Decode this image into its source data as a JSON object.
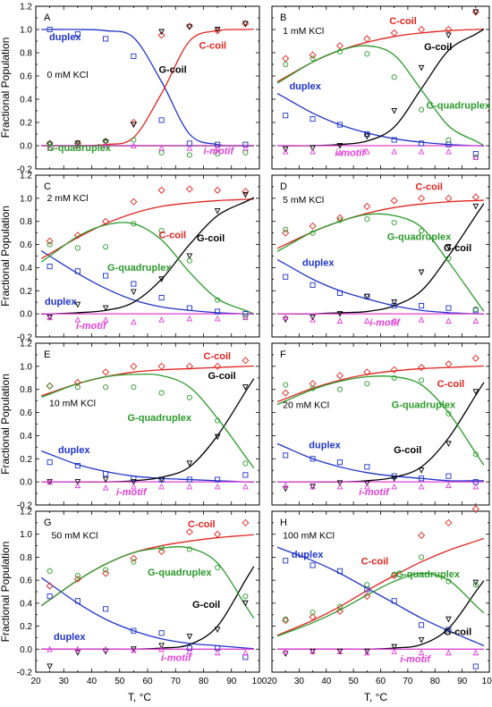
{
  "chart_data": {
    "type": "scatter",
    "ylabel": "Fractional Population",
    "xlabel": "T, °C",
    "xlim": [
      20,
      100
    ],
    "ylim": [
      -0.2,
      1.2
    ],
    "x_ticks": [
      "20",
      "30",
      "40",
      "50",
      "60",
      "70",
      "80",
      "90",
      "100"
    ],
    "y_ticks": [
      "-0.2",
      "0.0",
      "0.2",
      "0.4",
      "0.6",
      "0.8",
      "1.0",
      "1.2"
    ],
    "colors": {
      "duplex": "#1f35c8",
      "c_coil": "#e0241e",
      "g_coil": "#000000",
      "g_quadruplex": "#2a9a2a",
      "i_motif": "#e23fd8"
    },
    "temperatures": [
      25,
      35,
      45,
      55,
      65,
      75,
      85,
      95
    ],
    "panels": [
      {
        "letter": "A",
        "kcl": "0 mM KCl",
        "labels": {
          "duplex": "duplex",
          "c_coil": "C-coil",
          "g_coil": "G-coil",
          "g_quadruplex": "G-quadruplex",
          "i_motif": "i-motif"
        },
        "series": {
          "duplex": [
            1.0,
            0.96,
            0.92,
            0.77,
            0.22,
            0.02,
            0.01,
            0.01
          ],
          "c_coil": [
            0.02,
            0.02,
            0.04,
            0.2,
            0.95,
            1.03,
            0.99,
            1.05
          ],
          "g_coil": [
            0.01,
            0.02,
            0.03,
            0.18,
            0.98,
            1.02,
            1.0,
            1.05
          ],
          "g_quadruplex": [
            0.02,
            0.01,
            0.04,
            0.05,
            -0.06,
            -0.08,
            -0.07,
            -0.06
          ],
          "i_motif": [
            -0.02,
            0.0,
            0.0,
            0.0,
            -0.02,
            -0.02,
            -0.02,
            -0.02
          ]
        },
        "fits": {
          "duplex": [
            1.0,
            1.0,
            0.99,
            0.93,
            0.55,
            0.1,
            0.01,
            0.0
          ],
          "c_coil": [
            0.0,
            0.0,
            0.01,
            0.07,
            0.45,
            0.9,
            0.99,
            1.0
          ],
          "g_coil": [
            0.0,
            0.0,
            0.0,
            0.0,
            0.0,
            0.0,
            0.0,
            0.0
          ],
          "g_quadruplex": [
            0.0,
            0.0,
            0.0,
            0.0,
            0.0,
            0.0,
            0.0,
            0.0
          ],
          "i_motif": [
            0.0,
            0.0,
            0.0,
            0.0,
            0.0,
            0.0,
            0.0,
            0.0
          ]
        }
      },
      {
        "letter": "B",
        "kcl": "1 mM KCl",
        "labels": {
          "duplex": "duplex",
          "c_coil": "C-coil",
          "g_coil": "G-coil",
          "g_quadruplex": "G-quadruplex",
          "i_motif": "i-motif"
        },
        "series": {
          "duplex": [
            0.26,
            0.23,
            0.18,
            0.1,
            0.05,
            0.02,
            0.01,
            -0.07
          ],
          "c_coil": [
            0.75,
            0.78,
            0.86,
            0.92,
            0.97,
            1.0,
            1.0,
            1.15
          ],
          "g_coil": [
            -0.03,
            -0.02,
            0.0,
            0.08,
            0.3,
            0.67,
            0.95,
            1.15
          ],
          "g_quadruplex": [
            0.7,
            0.75,
            0.81,
            0.79,
            0.59,
            0.31,
            0.05,
            -0.1
          ],
          "i_motif": [
            -0.05,
            -0.05,
            -0.06,
            -0.05,
            -0.05,
            -0.05,
            -0.05,
            -0.1
          ]
        },
        "fits": {
          "duplex": [
            0.41,
            0.28,
            0.18,
            0.11,
            0.06,
            0.03,
            0.01,
            0.0
          ],
          "c_coil": [
            0.59,
            0.72,
            0.82,
            0.89,
            0.94,
            0.97,
            0.99,
            1.0
          ],
          "g_coil": [
            0.0,
            0.0,
            0.01,
            0.04,
            0.16,
            0.49,
            0.82,
            0.96
          ],
          "g_quadruplex": [
            0.58,
            0.72,
            0.82,
            0.86,
            0.78,
            0.48,
            0.17,
            0.04
          ],
          "i_motif": [
            0.0,
            0.0,
            0.0,
            0.0,
            0.0,
            0.0,
            0.0,
            0.0
          ]
        }
      },
      {
        "letter": "C",
        "kcl": "2 mM KCl",
        "labels": {
          "duplex": "duplex",
          "c_coil": "C-coil",
          "g_coil": "G-coil",
          "g_quadruplex": "G-quadruplex",
          "i_motif": "i-motif"
        },
        "series": {
          "duplex": [
            0.41,
            0.37,
            0.33,
            0.26,
            0.14,
            0.05,
            0.02,
            0.0
          ],
          "c_coil": [
            0.63,
            0.68,
            0.8,
            0.97,
            1.07,
            1.08,
            1.07,
            1.06
          ],
          "g_coil": [
            -0.03,
            0.08,
            0.05,
            0.19,
            0.3,
            0.5,
            0.89,
            1.03
          ],
          "g_quadruplex": [
            0.6,
            0.57,
            0.58,
            0.78,
            0.72,
            0.46,
            0.12,
            -0.02
          ],
          "i_motif": [
            -0.03,
            -0.05,
            -0.05,
            -0.07,
            -0.05,
            -0.04,
            -0.04,
            -0.03
          ]
        },
        "fits": {
          "duplex": [
            0.5,
            0.35,
            0.22,
            0.12,
            0.06,
            0.03,
            0.01,
            0.0
          ],
          "c_coil": [
            0.52,
            0.66,
            0.78,
            0.87,
            0.93,
            0.96,
            0.98,
            0.99
          ],
          "g_coil": [
            0.0,
            0.01,
            0.03,
            0.1,
            0.3,
            0.6,
            0.85,
            0.97
          ],
          "g_quadruplex": [
            0.5,
            0.67,
            0.77,
            0.78,
            0.64,
            0.36,
            0.13,
            0.03
          ],
          "i_motif": [
            0.0,
            0.0,
            0.0,
            0.0,
            0.0,
            0.0,
            0.0,
            0.0
          ]
        }
      },
      {
        "letter": "D",
        "kcl": "5 mM KCl",
        "labels": {
          "duplex": "duplex",
          "c_coil": "C-coil",
          "g_coil": "G-coil",
          "g_quadruplex": "G-quadruplex",
          "i_motif": "i-motif"
        },
        "series": {
          "duplex": [
            0.32,
            0.25,
            0.18,
            0.15,
            0.07,
            0.07,
            0.05,
            0.03
          ],
          "c_coil": [
            0.7,
            0.76,
            0.83,
            0.93,
            0.98,
            1.0,
            1.0,
            1.01
          ],
          "g_coil": [
            -0.05,
            -0.03,
            0.0,
            0.15,
            0.1,
            0.36,
            0.58,
            0.93
          ],
          "g_quadruplex": [
            0.73,
            0.7,
            0.81,
            0.82,
            0.79,
            0.72,
            0.48,
            0.04
          ],
          "i_motif": [
            -0.03,
            -0.05,
            -0.06,
            -0.06,
            -0.06,
            -0.05,
            -0.06,
            -0.06
          ]
        },
        "fits": {
          "duplex": [
            0.43,
            0.3,
            0.2,
            0.13,
            0.07,
            0.03,
            0.01,
            0.0
          ],
          "c_coil": [
            0.6,
            0.71,
            0.8,
            0.87,
            0.92,
            0.95,
            0.97,
            0.98
          ],
          "g_coil": [
            0.0,
            0.0,
            0.01,
            0.02,
            0.07,
            0.2,
            0.5,
            0.85
          ],
          "g_quadruplex": [
            0.58,
            0.71,
            0.8,
            0.86,
            0.85,
            0.75,
            0.45,
            0.12
          ],
          "i_motif": [
            0.0,
            0.0,
            0.0,
            0.0,
            0.0,
            0.0,
            0.0,
            0.0
          ]
        }
      },
      {
        "letter": "E",
        "kcl": "10 mM KCl",
        "labels": {
          "duplex": "duplex",
          "c_coil": "C-coil",
          "g_coil": "G-coil",
          "g_quadruplex": "G-quadruplex",
          "i_motif": "i-motif"
        },
        "series": {
          "duplex": [
            0.17,
            0.14,
            0.07,
            0.03,
            0.02,
            0.02,
            0.02,
            0.06
          ],
          "c_coil": [
            0.83,
            0.86,
            0.95,
            1.0,
            1.0,
            1.0,
            1.0,
            1.05
          ],
          "g_coil": [
            0.0,
            0.0,
            0.02,
            0.0,
            0.02,
            0.16,
            0.39,
            0.82
          ],
          "g_quadruplex": [
            0.83,
            0.82,
            0.82,
            0.82,
            0.77,
            0.73,
            0.53,
            0.16
          ],
          "i_motif": [
            0.0,
            -0.03,
            -0.05,
            -0.04,
            -0.04,
            -0.04,
            -0.04,
            -0.04
          ]
        },
        "fits": {
          "duplex": [
            0.24,
            0.15,
            0.09,
            0.05,
            0.03,
            0.02,
            0.01,
            0.0
          ],
          "c_coil": [
            0.77,
            0.85,
            0.91,
            0.95,
            0.97,
            0.98,
            0.99,
            1.0
          ],
          "g_coil": [
            0.0,
            0.0,
            0.0,
            0.01,
            0.04,
            0.13,
            0.4,
            0.78
          ],
          "g_quadruplex": [
            0.76,
            0.85,
            0.91,
            0.93,
            0.92,
            0.82,
            0.55,
            0.22
          ],
          "i_motif": [
            0.0,
            0.0,
            0.0,
            0.0,
            0.0,
            0.0,
            0.0,
            0.0
          ]
        }
      },
      {
        "letter": "F",
        "kcl": "20 mM KCl",
        "labels": {
          "duplex": "duplex",
          "c_coil": "C-coil",
          "g_coil": "G-coil",
          "g_quadruplex": "G-quadruplex",
          "i_motif": "i-motif"
        },
        "series": {
          "duplex": [
            0.23,
            0.2,
            0.17,
            0.13,
            0.05,
            0.03,
            0.05,
            0.0
          ],
          "c_coil": [
            0.77,
            0.85,
            0.92,
            0.95,
            0.97,
            0.99,
            1.02,
            1.07
          ],
          "g_coil": [
            -0.06,
            -0.04,
            -0.01,
            -0.01,
            0.03,
            0.1,
            0.33,
            0.78
          ],
          "g_quadruplex": [
            0.84,
            0.81,
            0.8,
            0.85,
            0.9,
            0.88,
            0.59,
            0.24
          ],
          "i_motif": [
            -0.03,
            -0.04,
            -0.04,
            -0.04,
            -0.04,
            -0.04,
            -0.03,
            -0.04
          ]
        },
        "fits": {
          "duplex": [
            0.3,
            0.2,
            0.13,
            0.08,
            0.05,
            0.03,
            0.01,
            0.01
          ],
          "c_coil": [
            0.72,
            0.81,
            0.88,
            0.93,
            0.96,
            0.98,
            0.99,
            1.0
          ],
          "g_coil": [
            0.0,
            0.0,
            0.0,
            0.01,
            0.04,
            0.13,
            0.38,
            0.75
          ],
          "g_quadruplex": [
            0.7,
            0.8,
            0.87,
            0.91,
            0.91,
            0.84,
            0.6,
            0.25
          ],
          "i_motif": [
            0.0,
            0.0,
            0.0,
            0.0,
            0.0,
            0.0,
            0.0,
            0.0
          ]
        }
      },
      {
        "letter": "G",
        "kcl": "50 mM KCl",
        "labels": {
          "duplex": "duplex",
          "c_coil": "C-coil",
          "g_coil": "G-coil",
          "g_quadruplex": "G-quadruplex",
          "i_motif": "i-motif"
        },
        "series": {
          "duplex": [
            0.46,
            0.42,
            0.35,
            0.16,
            0.14,
            0.01,
            0.01,
            -0.07
          ],
          "c_coil": [
            0.55,
            0.61,
            0.66,
            0.79,
            0.85,
            1.02,
            1.0,
            1.1
          ],
          "g_coil": [
            -0.15,
            -0.03,
            -0.02,
            0.0,
            0.03,
            0.11,
            0.17,
            0.4
          ],
          "g_quadruplex": [
            0.68,
            0.64,
            0.69,
            0.76,
            0.88,
            0.87,
            0.71,
            0.46
          ],
          "i_motif": [
            0.0,
            0.0,
            0.0,
            -0.01,
            0.0,
            -0.02,
            -0.03,
            -0.03
          ]
        },
        "fits": {
          "duplex": [
            0.57,
            0.4,
            0.26,
            0.16,
            0.09,
            0.05,
            0.03,
            0.01
          ],
          "c_coil": [
            0.43,
            0.6,
            0.74,
            0.84,
            0.9,
            0.94,
            0.97,
            0.99
          ],
          "g_coil": [
            0.0,
            0.0,
            0.0,
            0.0,
            0.01,
            0.04,
            0.2,
            0.6
          ],
          "g_quadruplex": [
            0.43,
            0.6,
            0.74,
            0.84,
            0.88,
            0.88,
            0.75,
            0.38
          ],
          "i_motif": [
            0.0,
            0.0,
            0.0,
            0.0,
            0.0,
            0.0,
            0.0,
            0.0
          ]
        }
      },
      {
        "letter": "H",
        "kcl": "100 mM KCl",
        "labels": {
          "duplex": "duplex",
          "c_coil": "C-coil",
          "g_coil": "G-coil",
          "g_quadruplex": "G-quadruplex",
          "i_motif": "i-motif"
        },
        "series": {
          "duplex": [
            0.77,
            0.73,
            0.68,
            0.52,
            0.42,
            0.21,
            0.17,
            -0.15
          ],
          "c_coil": [
            0.25,
            0.28,
            0.33,
            0.46,
            0.64,
            0.99,
            1.1,
            1.22
          ],
          "g_coil": [
            -0.04,
            -0.02,
            -0.02,
            -0.02,
            0.02,
            0.08,
            0.26,
            0.58
          ],
          "g_quadruplex": [
            0.26,
            0.32,
            0.37,
            0.56,
            0.65,
            0.8,
            0.59,
            0.56
          ],
          "i_motif": [
            -0.02,
            -0.02,
            -0.02,
            -0.03,
            -0.02,
            -0.03,
            -0.03,
            -0.03
          ]
        },
        "fits": {
          "duplex": [
            0.86,
            0.77,
            0.66,
            0.53,
            0.4,
            0.27,
            0.16,
            0.06
          ],
          "c_coil": [
            0.15,
            0.25,
            0.37,
            0.51,
            0.64,
            0.76,
            0.86,
            0.94
          ],
          "g_coil": [
            0.0,
            0.0,
            0.0,
            0.0,
            0.01,
            0.04,
            0.18,
            0.5
          ],
          "g_quadruplex": [
            0.14,
            0.23,
            0.34,
            0.47,
            0.59,
            0.66,
            0.6,
            0.38
          ],
          "i_motif": [
            0.0,
            0.0,
            0.0,
            0.0,
            0.0,
            0.0,
            0.0,
            0.0
          ]
        }
      }
    ]
  }
}
